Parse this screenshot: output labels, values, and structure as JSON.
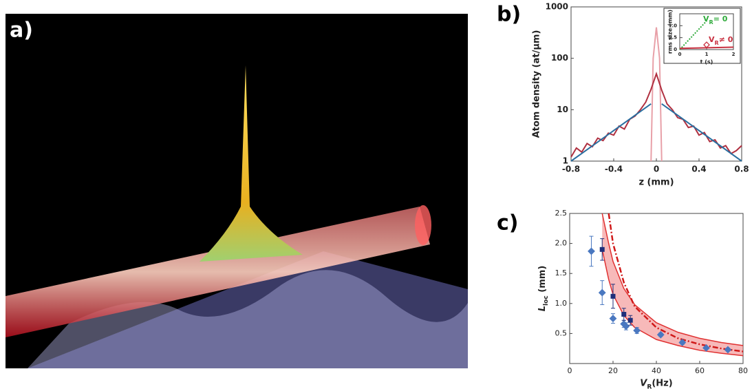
{
  "panels": [
    "a)",
    "b)",
    "c)"
  ],
  "chart_data": [
    {
      "type": "line",
      "xlabel": "z (mm)",
      "ylabel": "Atom density (at/μm)",
      "log_y": true,
      "xlim": [
        -0.8,
        0.8
      ],
      "xticks": [
        -0.8,
        -0.4,
        0,
        0.4,
        0.8
      ],
      "ylim": [
        1,
        1000
      ],
      "yticks": [
        1,
        10,
        100,
        1000
      ],
      "series": [
        {
          "style": "line",
          "color": "#e8a0a8",
          "x": [
            -0.05,
            -0.03,
            0,
            0.03,
            0.05
          ],
          "values": [
            1,
            100,
            400,
            100,
            1
          ]
        },
        {
          "style": "line",
          "color": "#b03040",
          "x": [
            -0.8,
            -0.75,
            -0.7,
            -0.65,
            -0.6,
            -0.55,
            -0.5,
            -0.45,
            -0.4,
            -0.35,
            -0.3,
            -0.25,
            -0.2,
            -0.15,
            -0.1,
            -0.05,
            0,
            0.05,
            0.1,
            0.15,
            0.2,
            0.25,
            0.3,
            0.35,
            0.4,
            0.45,
            0.5,
            0.55,
            0.6,
            0.65,
            0.7,
            0.75,
            0.8
          ],
          "values": [
            1.2,
            1.8,
            1.5,
            2.2,
            1.9,
            2.8,
            2.5,
            3.5,
            3.2,
            4.8,
            4.2,
            6.5,
            7.5,
            10,
            14,
            25,
            50,
            24,
            13,
            10,
            7,
            6.5,
            4.5,
            4.8,
            3.2,
            3.6,
            2.4,
            2.6,
            1.8,
            2.0,
            1.4,
            1.6,
            2.0
          ]
        },
        {
          "style": "line",
          "color": "#2a6fa0",
          "x": [
            -0.8,
            -0.05
          ],
          "values": [
            1,
            13
          ]
        },
        {
          "style": "line",
          "color": "#2a6fa0",
          "x": [
            0.05,
            0.8
          ],
          "values": [
            13,
            1
          ]
        }
      ]
    },
    {
      "type": "line",
      "xlabel": "t (s)",
      "ylabel": "rms size (mm)",
      "xlim": [
        0,
        2
      ],
      "xticks": [
        0,
        1,
        2
      ],
      "ylim": [
        0,
        1.5
      ],
      "yticks": [
        0,
        0.5,
        {
          "value": 1,
          "label": "1.0"
        }
      ],
      "annotations": [
        {
          "parts": [
            "V",
            "R",
            "= 0"
          ],
          "color": "#2eaa3a"
        },
        {
          "parts": [
            "V",
            "R",
            "≠ 0"
          ],
          "color": "#c83040"
        }
      ],
      "series": [
        {
          "style": "dotted",
          "color": "#2eaa3a",
          "x": [
            0,
            0.25,
            0.5,
            0.75,
            1
          ],
          "values": [
            0,
            0.3,
            0.6,
            0.9,
            1.2
          ]
        },
        {
          "style": "line",
          "color": "#c83040",
          "x": [
            0,
            2
          ],
          "values": [
            0.05,
            0.1
          ]
        },
        {
          "style": "open-diamond",
          "color": "#c83040",
          "x": [
            1
          ],
          "values": [
            0.2
          ]
        }
      ]
    },
    {
      "type": "scatter",
      "xlabel": [
        "V",
        "R",
        "(Hz)"
      ],
      "ylabel": [
        "L",
        "loc",
        " (mm)"
      ],
      "xlim": [
        0,
        80
      ],
      "xticks": [
        0,
        20,
        40,
        60,
        80
      ],
      "ylim": [
        0,
        2.5
      ],
      "yticks": [
        0.5,
        {
          "value": 1,
          "label": "1.0"
        },
        1.5,
        {
          "value": 2,
          "label": "2.0"
        },
        2.5
      ],
      "band": {
        "color": "#f08080",
        "x": [
          15,
          18,
          20,
          25,
          30,
          40,
          50,
          60,
          70,
          80
        ],
        "upper": [
          2.5,
          2.0,
          1.7,
          1.25,
          0.98,
          0.68,
          0.52,
          0.42,
          0.35,
          0.3
        ],
        "lower": [
          1.9,
          1.4,
          1.15,
          0.8,
          0.6,
          0.4,
          0.3,
          0.22,
          0.17,
          0.13
        ]
      },
      "series": [
        {
          "style": "dashdot",
          "color": "#d01818",
          "x": [
            18,
            20,
            25,
            30,
            40,
            50,
            60,
            70,
            80
          ],
          "values": [
            2.5,
            2.0,
            1.35,
            0.95,
            0.6,
            0.42,
            0.32,
            0.25,
            0.2
          ]
        },
        {
          "style": "diamond",
          "color": "#4a78c0",
          "x": [
            10,
            15,
            20,
            25,
            26,
            31,
            42,
            52,
            63,
            73
          ],
          "values": [
            1.87,
            1.18,
            0.75,
            0.66,
            0.62,
            0.55,
            0.48,
            0.35,
            0.26,
            0.23
          ],
          "errors": [
            0.25,
            0.2,
            0.08,
            0.06,
            0.06,
            0.05,
            0.03,
            0.03,
            0.02,
            0.02
          ]
        },
        {
          "style": "square",
          "color": "#1f2f7a",
          "x": [
            15,
            20,
            25,
            28
          ],
          "values": [
            1.9,
            1.12,
            0.82,
            0.72
          ],
          "errors": [
            0.18,
            0.2,
            0.1,
            0.08
          ]
        }
      ]
    }
  ]
}
